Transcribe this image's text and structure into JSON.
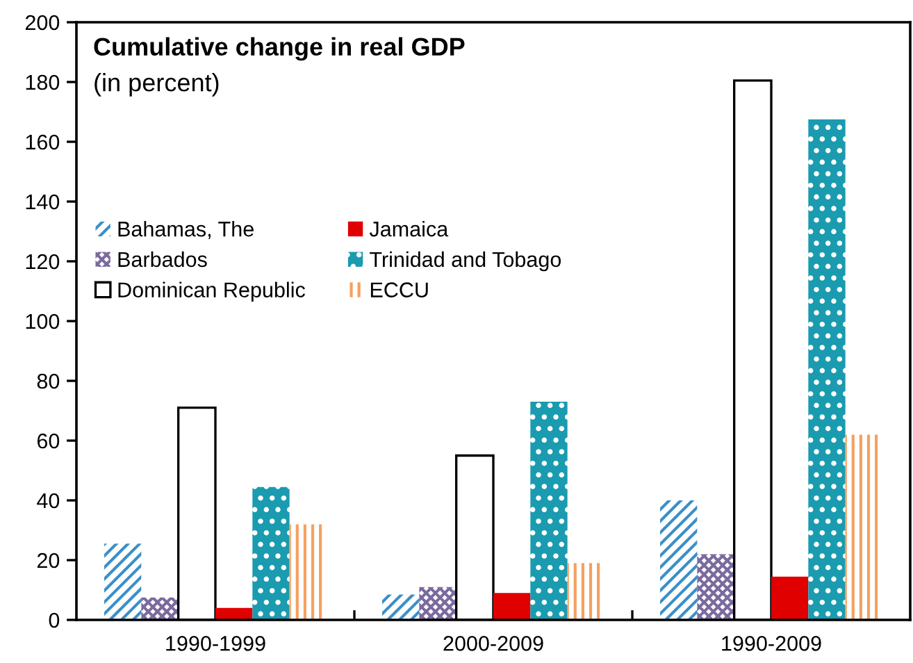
{
  "chart_data": {
    "type": "bar",
    "title": "Cumulative change in real GDP",
    "subtitle": "(in percent)",
    "categories": [
      "1990-1999",
      "2000-2009",
      "1990-2009"
    ],
    "series": [
      {
        "name": "Bahamas, The",
        "color": "#3a8fc8",
        "values": [
          25.5,
          8.5,
          40
        ]
      },
      {
        "name": "Barbados",
        "color": "#7a6a9e",
        "values": [
          7.5,
          11,
          22
        ]
      },
      {
        "name": "Dominican Republic",
        "color": "#ffffff",
        "values": [
          71,
          55,
          180.5
        ]
      },
      {
        "name": "Jamaica",
        "color": "#e00000",
        "values": [
          4,
          9,
          14.5
        ]
      },
      {
        "name": "Trinidad and Tobago",
        "color": "#1a9bb0",
        "values": [
          44.5,
          73,
          167.5
        ]
      },
      {
        "name": "ECCU",
        "color": "#f5a060",
        "values": [
          32,
          19,
          62
        ]
      }
    ],
    "ylim": [
      0,
      200
    ],
    "yticks": [
      0,
      20,
      40,
      60,
      80,
      100,
      120,
      140,
      160,
      180,
      200
    ],
    "grid": false,
    "legend": "left"
  }
}
